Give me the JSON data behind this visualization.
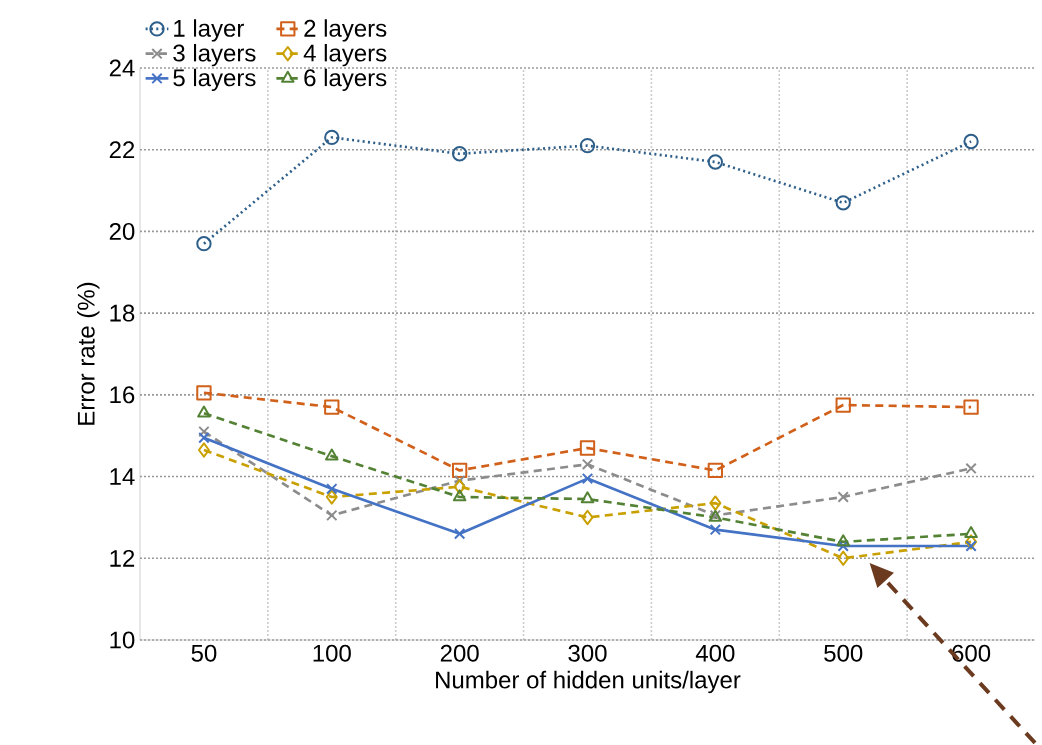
{
  "chart_data": {
    "type": "line",
    "xlabel": "Number of hidden units/layer",
    "ylabel": "Error rate (%)",
    "categories": [
      "50",
      "100",
      "200",
      "300",
      "400",
      "500",
      "600"
    ],
    "ylim": [
      10,
      24
    ],
    "yticks": [
      10,
      12,
      14,
      16,
      18,
      20,
      22,
      24
    ],
    "grid": true,
    "legend": "top left",
    "series": [
      {
        "name": "1 layer",
        "color": "#2e5f8a",
        "marker": "circle",
        "line_style": "dotted",
        "values": [
          19.7,
          22.3,
          21.9,
          22.1,
          21.7,
          20.7,
          22.2
        ]
      },
      {
        "name": "2 layers",
        "color": "#d0601a",
        "marker": "square",
        "line_style": "dashed",
        "values": [
          16.05,
          15.7,
          14.15,
          14.7,
          14.15,
          15.75,
          15.7
        ]
      },
      {
        "name": "3 layers",
        "color": "#8c8c8c",
        "marker": "cross",
        "line_style": "dashed",
        "values": [
          15.1,
          13.05,
          13.9,
          14.3,
          13.05,
          13.5,
          14.2
        ]
      },
      {
        "name": "4 layers",
        "color": "#c9a000",
        "marker": "diamond",
        "line_style": "dashed",
        "values": [
          14.65,
          13.5,
          13.75,
          13.0,
          13.35,
          12.0,
          12.4
        ]
      },
      {
        "name": "5 layers",
        "color": "#4472c4",
        "marker": "cross",
        "line_style": "solid",
        "values": [
          14.95,
          13.7,
          12.6,
          13.95,
          12.7,
          12.3,
          12.3
        ]
      },
      {
        "name": "6 layers",
        "color": "#548235",
        "marker": "triangle",
        "line_style": "dashed",
        "values": [
          15.55,
          14.5,
          13.5,
          13.45,
          13.0,
          12.4,
          12.6
        ]
      }
    ]
  }
}
